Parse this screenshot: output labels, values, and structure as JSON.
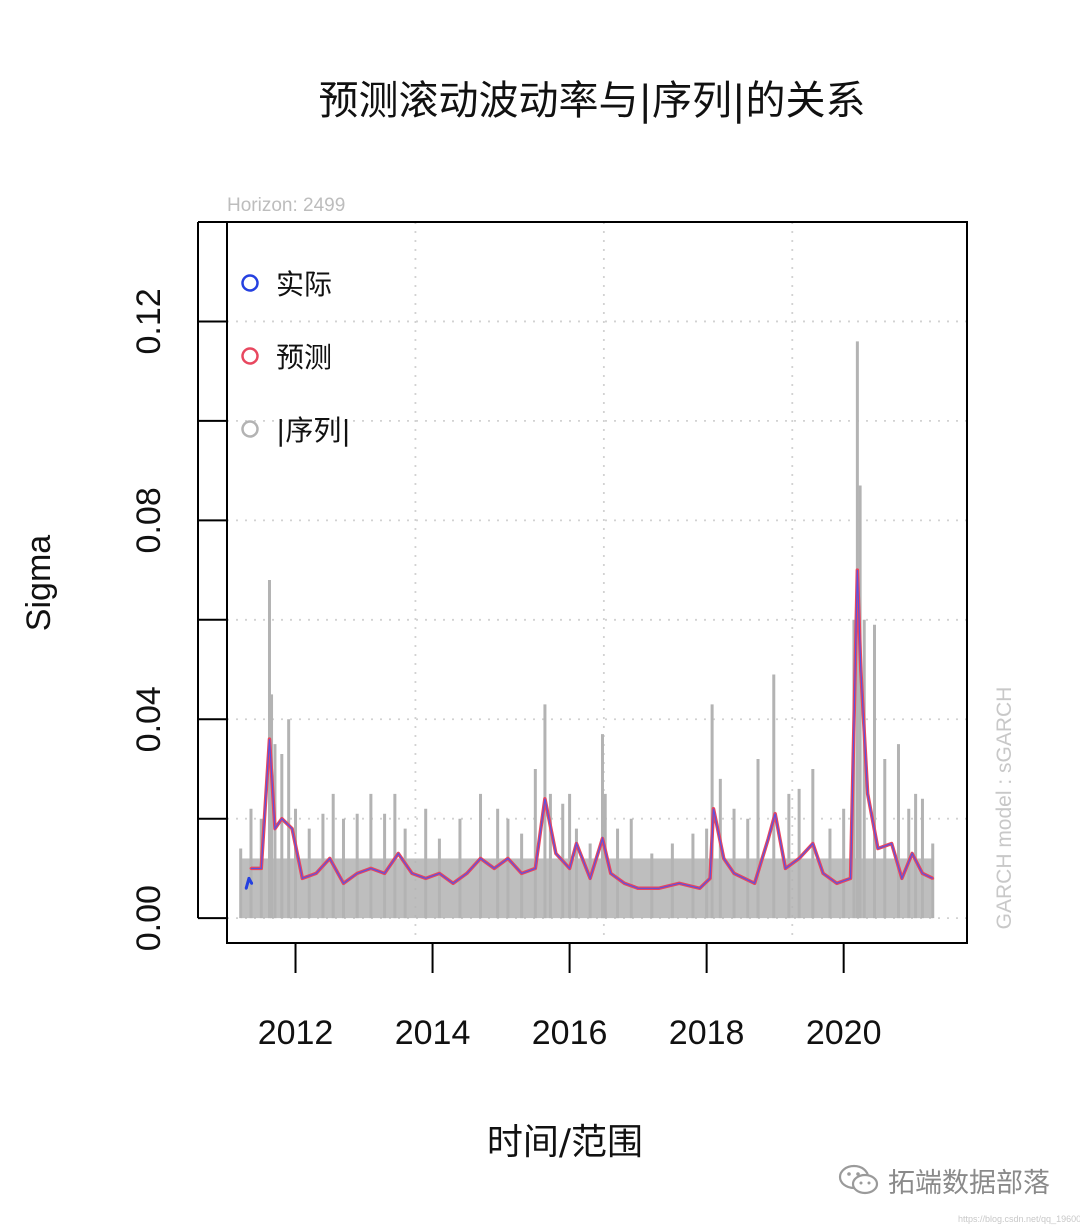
{
  "chart_data": {
    "type": "line",
    "title": "预测滚动波动率与|序列|的关系",
    "subtitle": "Horizon: 2499",
    "xlabel": "时间/范围",
    "ylabel": "Sigma",
    "side_label": "GARCH model :  sGARCH",
    "xlim": [
      2011.0,
      2021.8
    ],
    "ylim": [
      -0.005,
      0.14
    ],
    "x_ticks": [
      2012,
      2014,
      2016,
      2018,
      2020
    ],
    "y_ticks": [
      0.0,
      0.04,
      0.08,
      0.12
    ],
    "y_tick_labels": [
      "0.00",
      "0.04",
      "0.08",
      "0.12"
    ],
    "grid": true,
    "legend_position": "top-left",
    "legend": [
      {
        "label": "实际",
        "color": "#2540e0"
      },
      {
        "label": "预测",
        "color": "#e8475f"
      },
      {
        "label": "|序列|",
        "color": "#b3b3b3"
      }
    ],
    "series": [
      {
        "name": "|序列|",
        "color": "#b3b3b3",
        "style": "spikes",
        "x": [
          2011.2,
          2011.35,
          2011.5,
          2011.62,
          2011.65,
          2011.7,
          2011.8,
          2011.9,
          2012.0,
          2012.2,
          2012.4,
          2012.55,
          2012.7,
          2012.9,
          2013.1,
          2013.3,
          2013.45,
          2013.6,
          2013.9,
          2014.1,
          2014.4,
          2014.7,
          2014.95,
          2015.1,
          2015.3,
          2015.5,
          2015.64,
          2015.72,
          2015.9,
          2016.0,
          2016.1,
          2016.3,
          2016.48,
          2016.52,
          2016.7,
          2016.9,
          2017.2,
          2017.5,
          2017.8,
          2018.0,
          2018.08,
          2018.2,
          2018.4,
          2018.6,
          2018.75,
          2018.98,
          2019.2,
          2019.35,
          2019.55,
          2019.8,
          2020.0,
          2020.15,
          2020.2,
          2020.24,
          2020.3,
          2020.45,
          2020.6,
          2020.8,
          2020.95,
          2021.05,
          2021.15,
          2021.3
        ],
        "y": [
          0.014,
          0.022,
          0.02,
          0.068,
          0.045,
          0.035,
          0.033,
          0.04,
          0.022,
          0.018,
          0.021,
          0.025,
          0.02,
          0.021,
          0.025,
          0.021,
          0.025,
          0.018,
          0.022,
          0.016,
          0.02,
          0.025,
          0.022,
          0.02,
          0.017,
          0.03,
          0.043,
          0.025,
          0.023,
          0.025,
          0.018,
          0.015,
          0.037,
          0.025,
          0.018,
          0.02,
          0.013,
          0.015,
          0.017,
          0.018,
          0.043,
          0.028,
          0.022,
          0.02,
          0.032,
          0.049,
          0.025,
          0.026,
          0.03,
          0.018,
          0.022,
          0.06,
          0.116,
          0.087,
          0.06,
          0.059,
          0.032,
          0.035,
          0.022,
          0.025,
          0.024,
          0.015
        ]
      },
      {
        "name": "预测",
        "color": "#e8475f",
        "x": [
          2011.35,
          2011.5,
          2011.62,
          2011.7,
          2011.8,
          2011.95,
          2012.1,
          2012.3,
          2012.5,
          2012.7,
          2012.9,
          2013.1,
          2013.3,
          2013.5,
          2013.7,
          2013.9,
          2014.1,
          2014.3,
          2014.5,
          2014.7,
          2014.9,
          2015.1,
          2015.3,
          2015.5,
          2015.64,
          2015.8,
          2016.0,
          2016.1,
          2016.3,
          2016.48,
          2016.6,
          2016.8,
          2017.0,
          2017.3,
          2017.6,
          2017.9,
          2018.05,
          2018.1,
          2018.25,
          2018.4,
          2018.7,
          2018.9,
          2019.0,
          2019.15,
          2019.35,
          2019.55,
          2019.7,
          2019.9,
          2020.1,
          2020.2,
          2020.25,
          2020.35,
          2020.5,
          2020.7,
          2020.85,
          2021.0,
          2021.15,
          2021.3
        ],
        "y": [
          0.01,
          0.01,
          0.036,
          0.018,
          0.02,
          0.018,
          0.008,
          0.009,
          0.012,
          0.007,
          0.009,
          0.01,
          0.009,
          0.013,
          0.009,
          0.008,
          0.009,
          0.007,
          0.009,
          0.012,
          0.01,
          0.012,
          0.009,
          0.01,
          0.024,
          0.013,
          0.01,
          0.015,
          0.008,
          0.016,
          0.009,
          0.007,
          0.006,
          0.006,
          0.007,
          0.006,
          0.008,
          0.022,
          0.012,
          0.009,
          0.007,
          0.016,
          0.021,
          0.01,
          0.012,
          0.015,
          0.009,
          0.007,
          0.008,
          0.07,
          0.05,
          0.025,
          0.014,
          0.015,
          0.008,
          0.013,
          0.009,
          0.008
        ]
      },
      {
        "name": "实际",
        "color": "#2540e0",
        "x": [
          2011.28,
          2011.32,
          2011.36
        ],
        "y": [
          0.006,
          0.008,
          0.007
        ]
      }
    ]
  },
  "watermark": {
    "text": "拓端数据部落",
    "url": "https://blog.csdn.net/qq_19600291"
  }
}
